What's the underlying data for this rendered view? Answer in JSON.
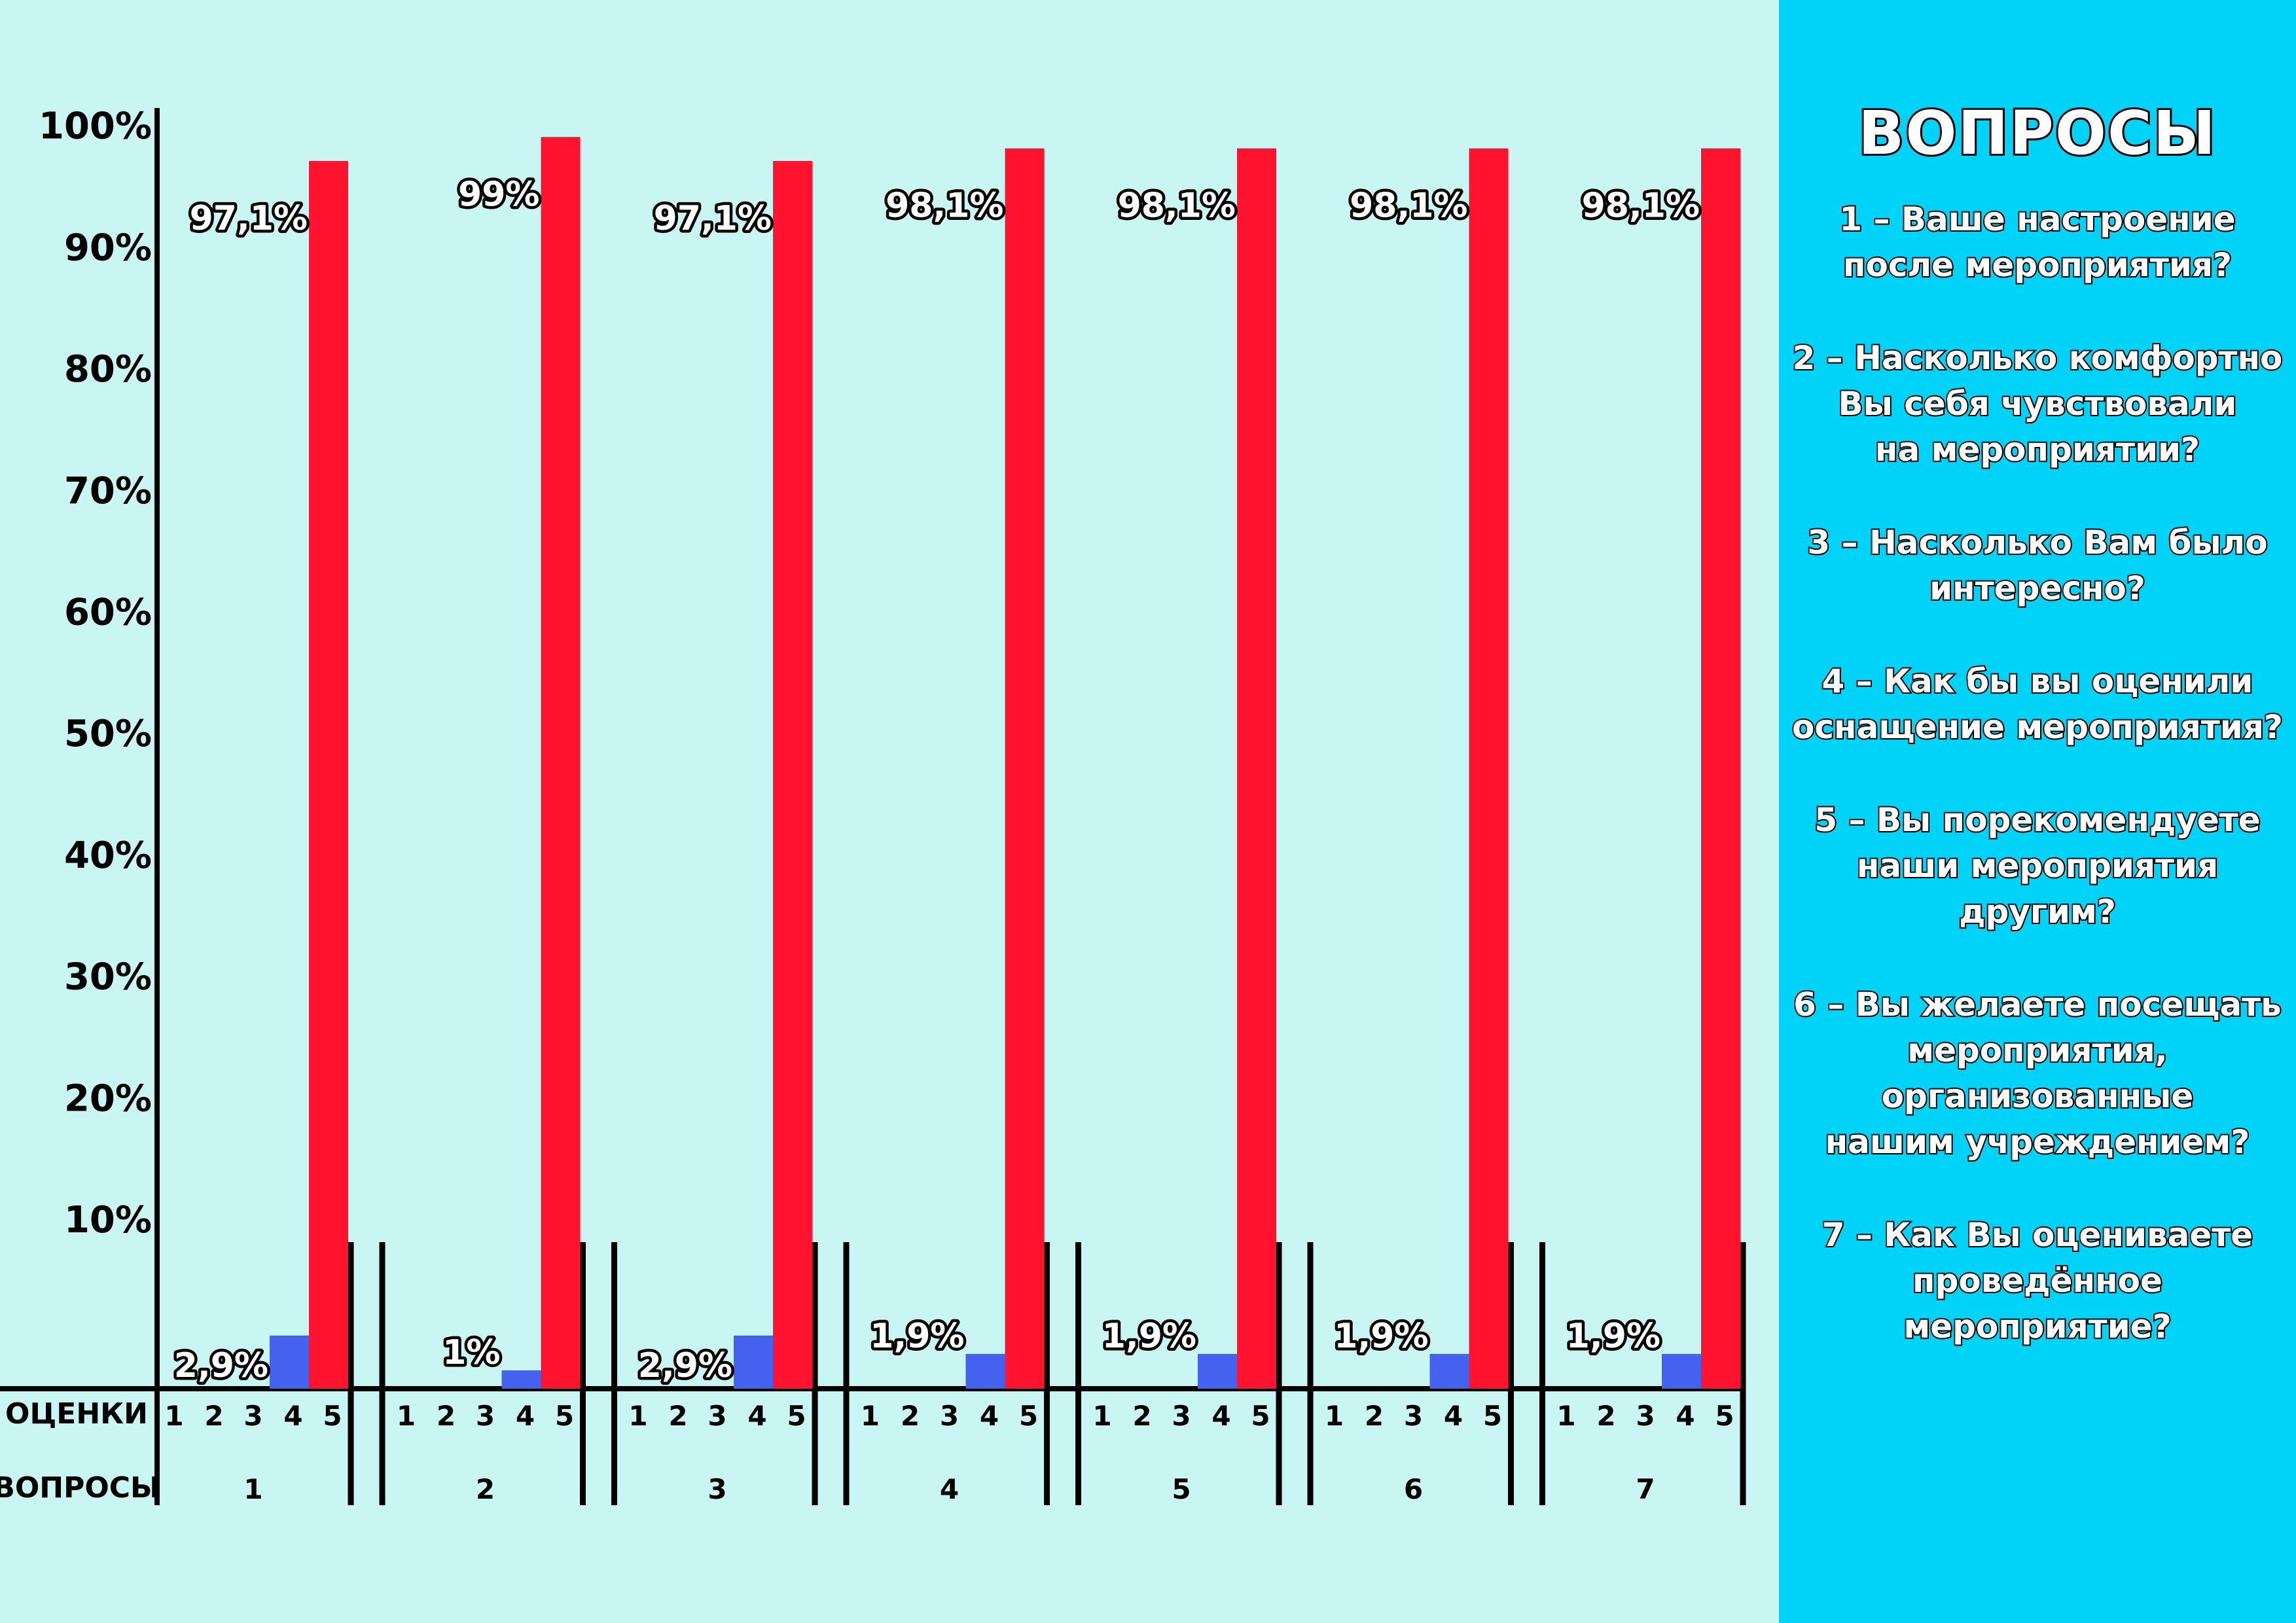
{
  "chart_data": {
    "type": "bar",
    "y_axis_ticks": [
      "10%",
      "20%",
      "30%",
      "40%",
      "50%",
      "60%",
      "70%",
      "80%",
      "90%",
      "100%"
    ],
    "row_labels": {
      "ratings": "ОЦЕНКИ",
      "questions": "ВОПРОСЫ"
    },
    "rating_labels": [
      "1",
      "2",
      "3",
      "4",
      "5"
    ],
    "ylim": [
      0,
      100
    ],
    "groups": [
      {
        "question": "1",
        "values": [
          0,
          0,
          0,
          2.9,
          97.1
        ],
        "labels": [
          "",
          "",
          "",
          "2,9%",
          "97,1%"
        ]
      },
      {
        "question": "2",
        "values": [
          0,
          0,
          0,
          1,
          99
        ],
        "labels": [
          "",
          "",
          "",
          "1%",
          "99%"
        ]
      },
      {
        "question": "3",
        "values": [
          0,
          0,
          0,
          2.9,
          97.1
        ],
        "labels": [
          "",
          "",
          "",
          "2,9%",
          "97,1%"
        ]
      },
      {
        "question": "4",
        "values": [
          0,
          0,
          0,
          1.9,
          98.1
        ],
        "labels": [
          "",
          "",
          "",
          "1,9%",
          "98,1%"
        ]
      },
      {
        "question": "5",
        "values": [
          0,
          0,
          0,
          1.9,
          98.1
        ],
        "labels": [
          "",
          "",
          "",
          "1,9%",
          "98,1%"
        ]
      },
      {
        "question": "6",
        "values": [
          0,
          0,
          0,
          1.9,
          98.1
        ],
        "labels": [
          "",
          "",
          "",
          "1,9%",
          "98,1%"
        ]
      },
      {
        "question": "7",
        "values": [
          0,
          0,
          0,
          1.9,
          98.1
        ],
        "labels": [
          "",
          "",
          "",
          "1,9%",
          "98,1%"
        ]
      }
    ],
    "colors": {
      "rating_4": "#4561f0",
      "rating_5": "#ff132e",
      "background": "#c9f5f3"
    },
    "grid": false,
    "legend": "none"
  },
  "sidebar": {
    "title": "ВОПРОСЫ",
    "questions": [
      "1 – Ваше настроение\nпосле мероприятия?",
      "2 – Насколько комфортно\nВы себя чувствовали\nна мероприятии?",
      "3 – Насколько Вам было\nинтересно?",
      "4 – Как бы вы оценили\nоснащение мероприятия?",
      "5 – Вы порекомендуете\nнаши мероприятия\nдругим?",
      "6 – Вы желаете посещать\nмероприятия,\nорганизованные\nнашим учреждением?",
      "7 – Как Вы оцениваете\nпроведённое\nмероприятие?"
    ],
    "background": "#00d2f8"
  }
}
